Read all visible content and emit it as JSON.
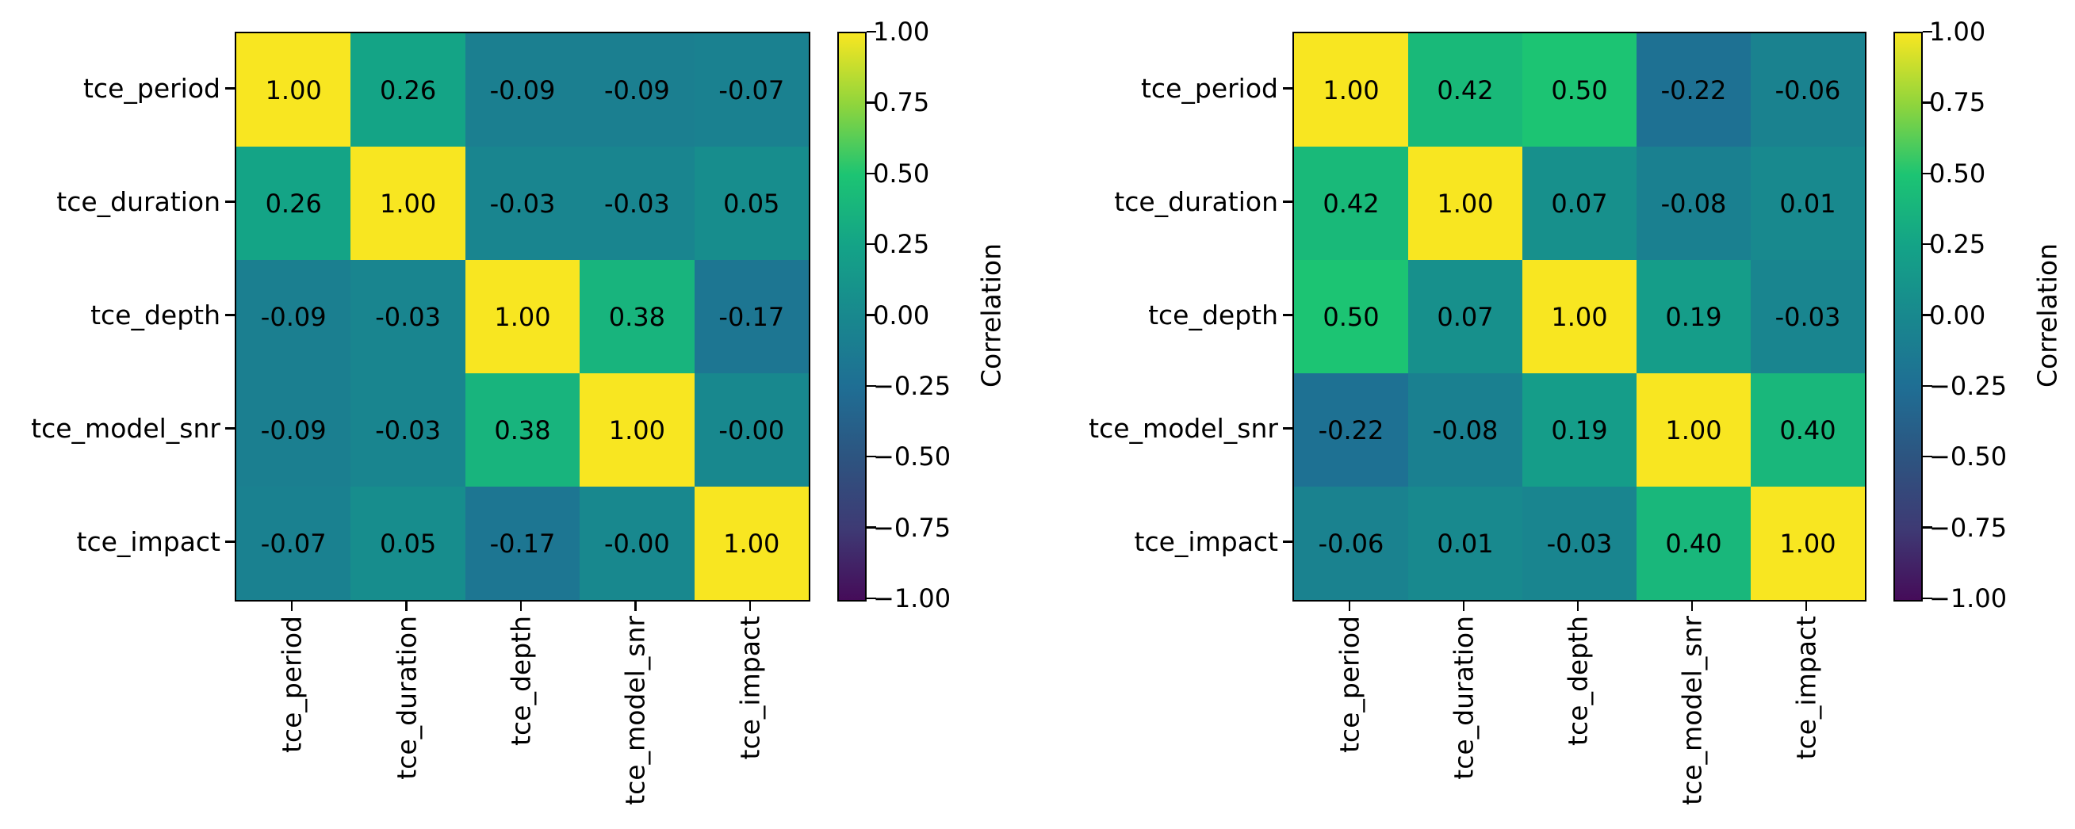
{
  "figure": {
    "background": "#ffffff"
  },
  "colormap": {
    "domain": [
      -1,
      1
    ],
    "anchors": [
      "#450c59",
      "#3e3a74",
      "#2d5480",
      "#1f6e94",
      "#18888e",
      "#14a387",
      "#1cc473",
      "#90d53c",
      "#f8e621"
    ]
  },
  "chart_data": [
    {
      "type": "heatmap",
      "title": "",
      "x_labels": [
        "tce_period",
        "tce_duration",
        "tce_depth",
        "tce_model_snr",
        "tce_impact"
      ],
      "y_labels": [
        "tce_period",
        "tce_duration",
        "tce_depth",
        "tce_model_snr",
        "tce_impact"
      ],
      "values": [
        [
          "1.00",
          "0.26",
          "-0.09",
          "-0.09",
          "-0.07"
        ],
        [
          "0.26",
          "1.00",
          "-0.03",
          "-0.03",
          "0.05"
        ],
        [
          "-0.09",
          "-0.03",
          "1.00",
          "0.38",
          "-0.17"
        ],
        [
          "-0.09",
          "-0.03",
          "0.38",
          "1.00",
          "-0.00"
        ],
        [
          "-0.07",
          "0.05",
          "-0.17",
          "-0.00",
          "1.00"
        ]
      ],
      "colorbar": {
        "label": "Correlation",
        "ticks": [
          "1.00",
          "0.75",
          "0.50",
          "0.25",
          "0.00",
          "−0.25",
          "−0.50",
          "−0.75",
          "−1.00"
        ],
        "range": [
          -1,
          1
        ]
      }
    },
    {
      "type": "heatmap",
      "title": "",
      "x_labels": [
        "tce_period",
        "tce_duration",
        "tce_depth",
        "tce_model_snr",
        "tce_impact"
      ],
      "y_labels": [
        "tce_period",
        "tce_duration",
        "tce_depth",
        "tce_model_snr",
        "tce_impact"
      ],
      "values": [
        [
          "1.00",
          "0.42",
          "0.50",
          "-0.22",
          "-0.06"
        ],
        [
          "0.42",
          "1.00",
          "0.07",
          "-0.08",
          "0.01"
        ],
        [
          "0.50",
          "0.07",
          "1.00",
          "0.19",
          "-0.03"
        ],
        [
          "-0.22",
          "-0.08",
          "0.19",
          "1.00",
          "0.40"
        ],
        [
          "-0.06",
          "0.01",
          "-0.03",
          "0.40",
          "1.00"
        ]
      ],
      "colorbar": {
        "label": "Correlation",
        "ticks": [
          "1.00",
          "0.75",
          "0.50",
          "0.25",
          "0.00",
          "−0.25",
          "−0.50",
          "−0.75",
          "−1.00"
        ],
        "range": [
          -1,
          1
        ]
      }
    }
  ]
}
